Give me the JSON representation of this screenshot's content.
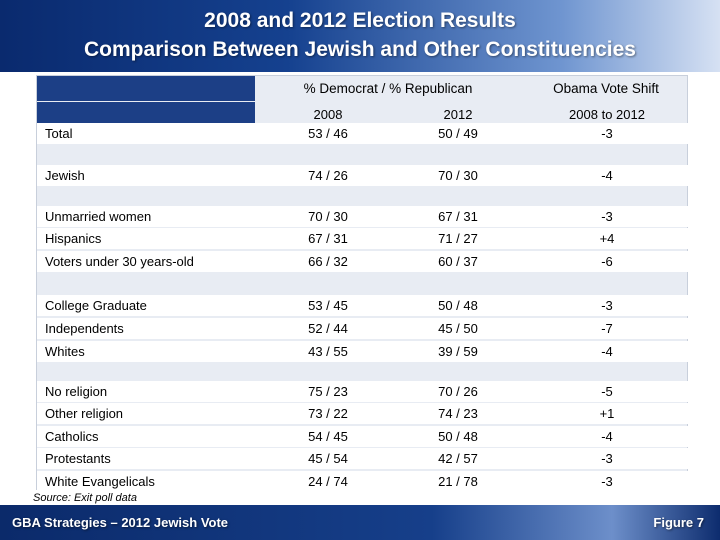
{
  "title": {
    "line1": "2008 and 2012 Election Results",
    "line2": "Comparison Between Jewish and Other Constituencies"
  },
  "table": {
    "group_header": "% Democrat  / % Republican",
    "shift_header": "Obama Vote Shift",
    "col_2008": "2008",
    "col_2012": "2012",
    "col_shift": "2008 to 2012",
    "rows": [
      {
        "label": "Total",
        "y2008": "53 / 46",
        "y2012": "50 / 49",
        "shift": "-3"
      },
      {
        "label": "Jewish",
        "y2008": "74 / 26",
        "y2012": "70 / 30",
        "shift": "-4"
      },
      {
        "label": "Unmarried women",
        "y2008": "70 / 30",
        "y2012": "67 / 31",
        "shift": "-3"
      },
      {
        "label": "Hispanics",
        "y2008": "67 / 31",
        "y2012": "71 / 27",
        "shift": "+4"
      },
      {
        "label": "Voters under 30 years-old",
        "y2008": "66 / 32",
        "y2012": "60 / 37",
        "shift": "-6"
      },
      {
        "label": "College Graduate",
        "y2008": "53 / 45",
        "y2012": "50 / 48",
        "shift": "-3"
      },
      {
        "label": "Independents",
        "y2008": "52 / 44",
        "y2012": "45 / 50",
        "shift": "-7"
      },
      {
        "label": "Whites",
        "y2008": "43 / 55",
        "y2012": "39 / 59",
        "shift": "-4"
      },
      {
        "label": "No religion",
        "y2008": "75 / 23",
        "y2012": "70 / 26",
        "shift": "-5"
      },
      {
        "label": "Other religion",
        "y2008": "73 / 22",
        "y2012": "74 / 23",
        "shift": "+1"
      },
      {
        "label": "Catholics",
        "y2008": "54 / 45",
        "y2012": "50 / 48",
        "shift": "-4"
      },
      {
        "label": "Protestants",
        "y2008": "45 / 54",
        "y2012": "42 / 57",
        "shift": "-3"
      },
      {
        "label": "White Evangelicals",
        "y2008": "24 / 74",
        "y2012": "21 / 78",
        "shift": "-3"
      }
    ]
  },
  "source": "Source: Exit poll data",
  "footer": {
    "left": "GBA Strategies – 2012 Jewish Vote",
    "right": "Figure  7"
  }
}
